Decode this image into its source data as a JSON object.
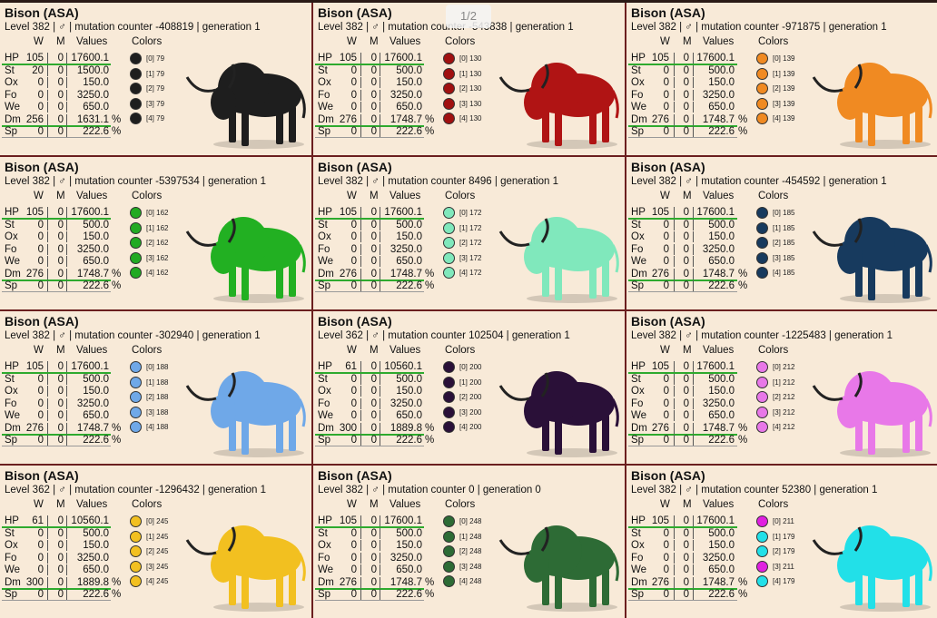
{
  "page_indicator": "1/2",
  "columns": [
    "W",
    "M",
    "Values",
    "Colors"
  ],
  "cards": [
    {
      "title": "Bison (ASA)",
      "info": "Level 382 | ♂ | mutation counter -408819 | generation 1",
      "bison_color": "#1e1e1e",
      "stats": [
        [
          "HP",
          "105",
          "0",
          "17600.1"
        ],
        [
          "St",
          "20",
          "0",
          "1500.0"
        ],
        [
          "Ox",
          "0",
          "0",
          "150.0"
        ],
        [
          "Fo",
          "0",
          "0",
          "3250.0"
        ],
        [
          "We",
          "0",
          "0",
          "650.0"
        ],
        [
          "Dm",
          "256",
          "0",
          "1631.1",
          "%"
        ],
        [
          "Sp",
          "0",
          "0",
          "222.6",
          "%"
        ]
      ],
      "colors": [
        {
          "color": "#1e1e1e",
          "label": "[0] 79"
        },
        {
          "color": "#1e1e1e",
          "label": "[1] 79"
        },
        {
          "color": "#1e1e1e",
          "label": "[2] 79"
        },
        {
          "color": "#1e1e1e",
          "label": "[3] 79"
        },
        {
          "color": "#1e1e1e",
          "label": "[4] 79"
        }
      ]
    },
    {
      "title": "Bison (ASA)",
      "info": "Level 382 | ♂ | mutation counter -543838 | generation 1",
      "bison_color": "#b01414",
      "stats": [
        [
          "HP",
          "105",
          "0",
          "17600.1"
        ],
        [
          "St",
          "0",
          "0",
          "500.0"
        ],
        [
          "Ox",
          "0",
          "0",
          "150.0"
        ],
        [
          "Fo",
          "0",
          "0",
          "3250.0"
        ],
        [
          "We",
          "0",
          "0",
          "650.0"
        ],
        [
          "Dm",
          "276",
          "0",
          "1748.7",
          "%"
        ],
        [
          "Sp",
          "0",
          "0",
          "222.6",
          "%"
        ]
      ],
      "colors": [
        {
          "color": "#a01010",
          "label": "[0] 130"
        },
        {
          "color": "#a01010",
          "label": "[1] 130"
        },
        {
          "color": "#a01010",
          "label": "[2] 130"
        },
        {
          "color": "#a01010",
          "label": "[3] 130"
        },
        {
          "color": "#a01010",
          "label": "[4] 130"
        }
      ]
    },
    {
      "title": "Bison (ASA)",
      "info": "Level 382 | ♂ | mutation counter -971875 | generation 1",
      "bison_color": "#f08a22",
      "stats": [
        [
          "HP",
          "105",
          "0",
          "17600.1"
        ],
        [
          "St",
          "0",
          "0",
          "500.0"
        ],
        [
          "Ox",
          "0",
          "0",
          "150.0"
        ],
        [
          "Fo",
          "0",
          "0",
          "3250.0"
        ],
        [
          "We",
          "0",
          "0",
          "650.0"
        ],
        [
          "Dm",
          "276",
          "0",
          "1748.7",
          "%"
        ],
        [
          "Sp",
          "0",
          "0",
          "222.6",
          "%"
        ]
      ],
      "colors": [
        {
          "color": "#f08a22",
          "label": "[0] 139"
        },
        {
          "color": "#f08a22",
          "label": "[1] 139"
        },
        {
          "color": "#f08a22",
          "label": "[2] 139"
        },
        {
          "color": "#f08a22",
          "label": "[3] 139"
        },
        {
          "color": "#f08a22",
          "label": "[4] 139"
        }
      ]
    },
    {
      "title": "Bison (ASA)",
      "info": "Level 382 | ♂ | mutation counter -5397534 | generation 1",
      "bison_color": "#22b022",
      "stats": [
        [
          "HP",
          "105",
          "0",
          "17600.1"
        ],
        [
          "St",
          "0",
          "0",
          "500.0"
        ],
        [
          "Ox",
          "0",
          "0",
          "150.0"
        ],
        [
          "Fo",
          "0",
          "0",
          "3250.0"
        ],
        [
          "We",
          "0",
          "0",
          "650.0"
        ],
        [
          "Dm",
          "276",
          "0",
          "1748.7",
          "%"
        ],
        [
          "Sp",
          "0",
          "0",
          "222.6",
          "%"
        ]
      ],
      "colors": [
        {
          "color": "#22aa22",
          "label": "[0] 162"
        },
        {
          "color": "#22aa22",
          "label": "[1] 162"
        },
        {
          "color": "#22aa22",
          "label": "[2] 162"
        },
        {
          "color": "#22aa22",
          "label": "[3] 162"
        },
        {
          "color": "#22aa22",
          "label": "[4] 162"
        }
      ]
    },
    {
      "title": "Bison (ASA)",
      "info": "Level 382 | ♂ | mutation counter 8496 | generation 1",
      "bison_color": "#80e8bc",
      "stats": [
        [
          "HP",
          "105",
          "0",
          "17600.1"
        ],
        [
          "St",
          "0",
          "0",
          "500.0"
        ],
        [
          "Ox",
          "0",
          "0",
          "150.0"
        ],
        [
          "Fo",
          "0",
          "0",
          "3250.0"
        ],
        [
          "We",
          "0",
          "0",
          "650.0"
        ],
        [
          "Dm",
          "276",
          "0",
          "1748.7",
          "%"
        ],
        [
          "Sp",
          "0",
          "0",
          "222.6",
          "%"
        ]
      ],
      "colors": [
        {
          "color": "#80e8bc",
          "label": "[0] 172"
        },
        {
          "color": "#80e8bc",
          "label": "[1] 172"
        },
        {
          "color": "#80e8bc",
          "label": "[2] 172"
        },
        {
          "color": "#80e8bc",
          "label": "[3] 172"
        },
        {
          "color": "#80e8bc",
          "label": "[4] 172"
        }
      ]
    },
    {
      "title": "Bison (ASA)",
      "info": "Level 382 | ♂ | mutation counter -454592 | generation 1",
      "bison_color": "#173a5e",
      "stats": [
        [
          "HP",
          "105",
          "0",
          "17600.1"
        ],
        [
          "St",
          "0",
          "0",
          "500.0"
        ],
        [
          "Ox",
          "0",
          "0",
          "150.0"
        ],
        [
          "Fo",
          "0",
          "0",
          "3250.0"
        ],
        [
          "We",
          "0",
          "0",
          "650.0"
        ],
        [
          "Dm",
          "276",
          "0",
          "1748.7",
          "%"
        ],
        [
          "Sp",
          "0",
          "0",
          "222.6",
          "%"
        ]
      ],
      "colors": [
        {
          "color": "#173a5e",
          "label": "[0] 185"
        },
        {
          "color": "#173a5e",
          "label": "[1] 185"
        },
        {
          "color": "#173a5e",
          "label": "[2] 185"
        },
        {
          "color": "#173a5e",
          "label": "[3] 185"
        },
        {
          "color": "#173a5e",
          "label": "[4] 185"
        }
      ]
    },
    {
      "title": "Bison (ASA)",
      "info": "Level 382 | ♂ | mutation counter -302940 | generation 1",
      "bison_color": "#6fa8e8",
      "stats": [
        [
          "HP",
          "105",
          "0",
          "17600.1"
        ],
        [
          "St",
          "0",
          "0",
          "500.0"
        ],
        [
          "Ox",
          "0",
          "0",
          "150.0"
        ],
        [
          "Fo",
          "0",
          "0",
          "3250.0"
        ],
        [
          "We",
          "0",
          "0",
          "650.0"
        ],
        [
          "Dm",
          "276",
          "0",
          "1748.7",
          "%"
        ],
        [
          "Sp",
          "0",
          "0",
          "222.6",
          "%"
        ]
      ],
      "colors": [
        {
          "color": "#6fa8e8",
          "label": "[0] 188"
        },
        {
          "color": "#6fa8e8",
          "label": "[1] 188"
        },
        {
          "color": "#6fa8e8",
          "label": "[2] 188"
        },
        {
          "color": "#6fa8e8",
          "label": "[3] 188"
        },
        {
          "color": "#6fa8e8",
          "label": "[4] 188"
        }
      ]
    },
    {
      "title": "Bison (ASA)",
      "info": "Level 362 | ♂ | mutation counter 102504 | generation 1",
      "bison_color": "#2a1038",
      "stats": [
        [
          "HP",
          "61",
          "0",
          "10560.1"
        ],
        [
          "St",
          "0",
          "0",
          "500.0"
        ],
        [
          "Ox",
          "0",
          "0",
          "150.0"
        ],
        [
          "Fo",
          "0",
          "0",
          "3250.0"
        ],
        [
          "We",
          "0",
          "0",
          "650.0"
        ],
        [
          "Dm",
          "300",
          "0",
          "1889.8",
          "%"
        ],
        [
          "Sp",
          "0",
          "0",
          "222.6",
          "%"
        ]
      ],
      "colors": [
        {
          "color": "#2a1038",
          "label": "[0] 200"
        },
        {
          "color": "#2a1038",
          "label": "[1] 200"
        },
        {
          "color": "#2a1038",
          "label": "[2] 200"
        },
        {
          "color": "#2a1038",
          "label": "[3] 200"
        },
        {
          "color": "#2a1038",
          "label": "[4] 200"
        }
      ]
    },
    {
      "title": "Bison (ASA)",
      "info": "Level 382 | ♂ | mutation counter -1225483 | generation 1",
      "bison_color": "#e878e8",
      "stats": [
        [
          "HP",
          "105",
          "0",
          "17600.1"
        ],
        [
          "St",
          "0",
          "0",
          "500.0"
        ],
        [
          "Ox",
          "0",
          "0",
          "150.0"
        ],
        [
          "Fo",
          "0",
          "0",
          "3250.0"
        ],
        [
          "We",
          "0",
          "0",
          "650.0"
        ],
        [
          "Dm",
          "276",
          "0",
          "1748.7",
          "%"
        ],
        [
          "Sp",
          "0",
          "0",
          "222.6",
          "%"
        ]
      ],
      "colors": [
        {
          "color": "#e878e8",
          "label": "[0] 212"
        },
        {
          "color": "#e878e8",
          "label": "[1] 212"
        },
        {
          "color": "#e878e8",
          "label": "[2] 212"
        },
        {
          "color": "#e878e8",
          "label": "[3] 212"
        },
        {
          "color": "#e878e8",
          "label": "[4] 212"
        }
      ]
    },
    {
      "title": "Bison (ASA)",
      "info": "Level 362 | ♂ | mutation counter -1296432 | generation 1",
      "bison_color": "#f2c020",
      "stats": [
        [
          "HP",
          "61",
          "0",
          "10560.1"
        ],
        [
          "St",
          "0",
          "0",
          "500.0"
        ],
        [
          "Ox",
          "0",
          "0",
          "150.0"
        ],
        [
          "Fo",
          "0",
          "0",
          "3250.0"
        ],
        [
          "We",
          "0",
          "0",
          "650.0"
        ],
        [
          "Dm",
          "300",
          "0",
          "1889.8",
          "%"
        ],
        [
          "Sp",
          "0",
          "0",
          "222.6",
          "%"
        ]
      ],
      "colors": [
        {
          "color": "#f2c020",
          "label": "[0] 245"
        },
        {
          "color": "#f2c020",
          "label": "[1] 245"
        },
        {
          "color": "#f2c020",
          "label": "[2] 245"
        },
        {
          "color": "#f2c020",
          "label": "[3] 245"
        },
        {
          "color": "#f2c020",
          "label": "[4] 245"
        }
      ]
    },
    {
      "title": "Bison (ASA)",
      "info": "Level 382 | ♂ | mutation counter 0 | generation 0",
      "bison_color": "#2d6b35",
      "stats": [
        [
          "HP",
          "105",
          "0",
          "17600.1"
        ],
        [
          "St",
          "0",
          "0",
          "500.0"
        ],
        [
          "Ox",
          "0",
          "0",
          "150.0"
        ],
        [
          "Fo",
          "0",
          "0",
          "3250.0"
        ],
        [
          "We",
          "0",
          "0",
          "650.0"
        ],
        [
          "Dm",
          "276",
          "0",
          "1748.7",
          "%"
        ],
        [
          "Sp",
          "0",
          "0",
          "222.6",
          "%"
        ]
      ],
      "colors": [
        {
          "color": "#2d6b35",
          "label": "[0] 248"
        },
        {
          "color": "#2d6b35",
          "label": "[1] 248"
        },
        {
          "color": "#2d6b35",
          "label": "[2] 248"
        },
        {
          "color": "#2d6b35",
          "label": "[3] 248"
        },
        {
          "color": "#2d6b35",
          "label": "[4] 248"
        }
      ]
    },
    {
      "title": "Bison (ASA)",
      "info": "Level 382 | ♂ | mutation counter 52380 | generation 1",
      "bison_color": "#22e0e8",
      "stats": [
        [
          "HP",
          "105",
          "0",
          "17600.1"
        ],
        [
          "St",
          "0",
          "0",
          "500.0"
        ],
        [
          "Ox",
          "0",
          "0",
          "150.0"
        ],
        [
          "Fo",
          "0",
          "0",
          "3250.0"
        ],
        [
          "We",
          "0",
          "0",
          "650.0"
        ],
        [
          "Dm",
          "276",
          "0",
          "1748.7",
          "%"
        ],
        [
          "Sp",
          "0",
          "0",
          "222.6",
          "%"
        ]
      ],
      "colors": [
        {
          "color": "#e020e0",
          "label": "[0] 211"
        },
        {
          "color": "#22e0e8",
          "label": "[1] 179"
        },
        {
          "color": "#22e0e8",
          "label": "[2] 179"
        },
        {
          "color": "#e020e0",
          "label": "[3] 211"
        },
        {
          "color": "#22e0e8",
          "label": "[4] 179"
        }
      ]
    }
  ]
}
